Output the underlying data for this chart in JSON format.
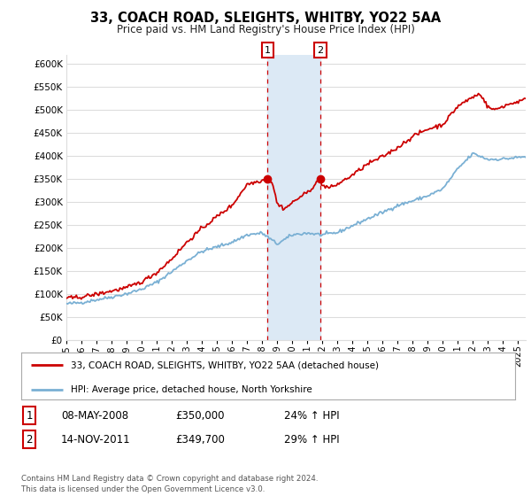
{
  "title": "33, COACH ROAD, SLEIGHTS, WHITBY, YO22 5AA",
  "subtitle": "Price paid vs. HM Land Registry's House Price Index (HPI)",
  "ylim": [
    0,
    620000
  ],
  "yticks": [
    0,
    50000,
    100000,
    150000,
    200000,
    250000,
    300000,
    350000,
    400000,
    450000,
    500000,
    550000,
    600000
  ],
  "xlim_start": 1995.0,
  "xlim_end": 2025.5,
  "sale1_x": 2008.36,
  "sale1_y": 350000,
  "sale2_x": 2011.87,
  "sale2_y": 349700,
  "red_color": "#cc0000",
  "blue_color": "#7ab0d4",
  "shade_color": "#dce9f5",
  "legend_red": "33, COACH ROAD, SLEIGHTS, WHITBY, YO22 5AA (detached house)",
  "legend_blue": "HPI: Average price, detached house, North Yorkshire",
  "sale1_label": "1",
  "sale2_label": "2",
  "sale1_date": "08-MAY-2008",
  "sale1_price": "£350,000",
  "sale1_hpi": "24% ↑ HPI",
  "sale2_date": "14-NOV-2011",
  "sale2_price": "£349,700",
  "sale2_hpi": "29% ↑ HPI",
  "footnote": "Contains HM Land Registry data © Crown copyright and database right 2024.\nThis data is licensed under the Open Government Licence v3.0.",
  "background_color": "#ffffff",
  "grid_color": "#dddddd"
}
